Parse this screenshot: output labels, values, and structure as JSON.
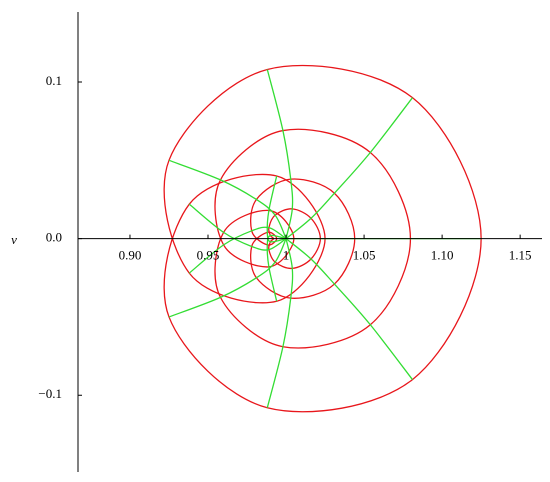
{
  "chart_data": {
    "type": "line",
    "y_label": "v",
    "xlim": [
      0.8667,
      1.164
    ],
    "ylim": [
      -0.149,
      0.1447
    ],
    "xticks": [
      {
        "value": 0.9,
        "label": "0.90"
      },
      0.95,
      1,
      1.05,
      {
        "value": 1.1,
        "label": "1.10"
      },
      1.15
    ],
    "yticks": [
      0.1,
      {
        "value": 0,
        "label": "0.0"
      },
      {
        "value": -0.1,
        "label": "−0.1"
      }
    ],
    "series": [
      {
        "color": "#e8161b",
        "closed": true,
        "x": [
          1.125,
          1.081,
          0.988,
          0.925,
          0.938,
          0.994,
          1.025,
          0.994,
          0.938,
          0.925,
          0.988,
          1.081
        ],
        "y": [
          0,
          0.09,
          0.108,
          0.05,
          -0.022,
          -0.04,
          0,
          0.04,
          0.022,
          -0.05,
          -0.108,
          -0.09
        ]
      },
      {
        "color": "#e8161b",
        "closed": true,
        "x": [
          1.0797,
          1.054,
          0.998,
          0.958,
          0.96,
          0.989,
          1.005,
          0.989,
          0.96,
          0.958,
          0.998,
          1.054
        ],
        "y": [
          0,
          0.055,
          0.069,
          0.0375,
          -0.004,
          -0.018,
          0,
          0.018,
          0.004,
          -0.0375,
          -0.069,
          -0.055
        ]
      },
      {
        "color": "#e8161b",
        "closed": true,
        "x": [
          1.044,
          1.031,
          1.003,
          0.981,
          0.978,
          0.988,
          0.994,
          0.988,
          0.978,
          0.981,
          1.003,
          1.031
        ],
        "y": [
          0,
          0.029,
          0.038,
          0.025,
          0.005,
          -0.004,
          0,
          0.004,
          -0.005,
          -0.025,
          -0.038,
          -0.029
        ]
      },
      {
        "color": "#e8161b",
        "closed": true,
        "x": [
          1.022,
          1.016,
          1.004,
          0.993,
          0.989,
          0.99,
          0.992,
          0.99,
          0.989,
          0.993,
          1.004,
          1.016
        ],
        "y": [
          0,
          0.013,
          0.019,
          0.015,
          0.007,
          0.002,
          0,
          -0.002,
          -0.007,
          -0.015,
          -0.019,
          -0.013
        ]
      },
      {
        "color": "#33dd33",
        "x": [
          1,
          1.022,
          1.044,
          1.0797,
          1.125
        ],
        "y": [
          0,
          0,
          0,
          0,
          0
        ]
      },
      {
        "color": "#33dd33",
        "x": [
          1,
          1.016,
          1.031,
          1.054,
          1.081
        ],
        "y": [
          0,
          0.013,
          0.029,
          0.055,
          0.09
        ]
      },
      {
        "color": "#33dd33",
        "x": [
          1,
          1.004,
          1.003,
          0.998,
          0.988
        ],
        "y": [
          0,
          0.019,
          0.038,
          0.069,
          0.108
        ]
      },
      {
        "color": "#33dd33",
        "x": [
          1,
          0.993,
          0.981,
          0.958,
          0.925
        ],
        "y": [
          0,
          0.015,
          0.025,
          0.0375,
          0.05
        ]
      },
      {
        "color": "#33dd33",
        "x": [
          1,
          0.989,
          0.978,
          0.96,
          0.938
        ],
        "y": [
          0,
          0.007,
          0.005,
          -0.004,
          -0.022
        ]
      },
      {
        "color": "#33dd33",
        "x": [
          1,
          0.99,
          0.988,
          0.989,
          0.994
        ],
        "y": [
          0,
          0.002,
          -0.004,
          -0.018,
          -0.04
        ]
      },
      {
        "color": "#33dd33",
        "x": [
          1,
          0.99,
          0.988,
          0.989,
          0.994
        ],
        "y": [
          0,
          -0.002,
          0.004,
          0.018,
          0.04
        ]
      },
      {
        "color": "#33dd33",
        "x": [
          1,
          0.989,
          0.978,
          0.96,
          0.938
        ],
        "y": [
          0,
          -0.007,
          -0.005,
          0.004,
          0.022
        ]
      },
      {
        "color": "#33dd33",
        "x": [
          1,
          0.993,
          0.981,
          0.958,
          0.925
        ],
        "y": [
          0,
          -0.015,
          -0.025,
          -0.0375,
          -0.05
        ]
      },
      {
        "color": "#33dd33",
        "x": [
          1,
          1.004,
          1.003,
          0.998,
          0.988
        ],
        "y": [
          0,
          -0.019,
          -0.038,
          -0.069,
          -0.108
        ]
      },
      {
        "color": "#33dd33",
        "x": [
          1,
          1.016,
          1.031,
          1.054,
          1.081
        ],
        "y": [
          0,
          -0.013,
          -0.029,
          -0.055,
          -0.09
        ]
      }
    ]
  }
}
